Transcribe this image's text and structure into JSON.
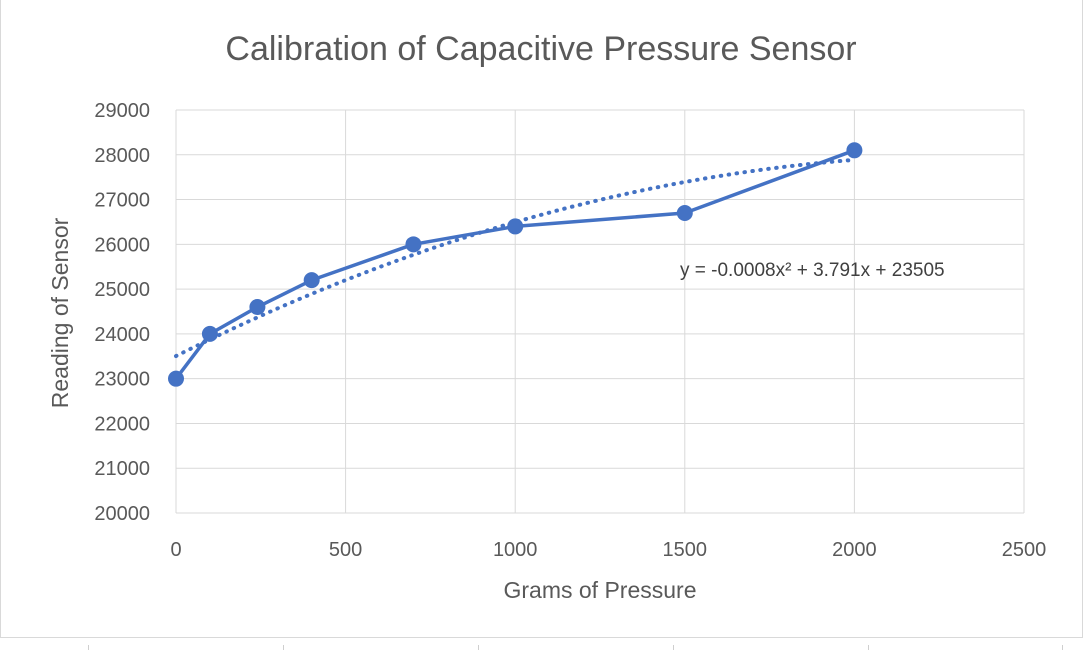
{
  "chart_data": {
    "type": "line",
    "title": "Calibration of Capacitive Pressure Sensor",
    "xlabel": "Grams of Pressure",
    "ylabel": "Reading of Sensor",
    "xlim": [
      0,
      2500
    ],
    "ylim": [
      20000,
      29000
    ],
    "x_ticks": [
      0,
      500,
      1000,
      1500,
      2000,
      2500
    ],
    "y_ticks": [
      20000,
      21000,
      22000,
      23000,
      24000,
      25000,
      26000,
      27000,
      28000,
      29000
    ],
    "grid": true,
    "legend": "none",
    "series": [
      {
        "color": "#4472c4",
        "markers": true,
        "points": [
          {
            "x": 0,
            "y": 23000
          },
          {
            "x": 100,
            "y": 24000
          },
          {
            "x": 240,
            "y": 24600
          },
          {
            "x": 400,
            "y": 25200
          },
          {
            "x": 700,
            "y": 26000
          },
          {
            "x": 1000,
            "y": 26400
          },
          {
            "x": 1500,
            "y": 26700
          },
          {
            "x": 2000,
            "y": 28100
          }
        ]
      }
    ],
    "trendline": {
      "type": "polynomial",
      "order": 2,
      "style": "dotted",
      "color": "#4472c4",
      "coefficients": {
        "a": -0.0008,
        "b": 3.791,
        "c": 23505
      },
      "x_range": [
        0,
        2000
      ],
      "equation_label": "y = -0.0008x² + 3.791x + 23505"
    }
  }
}
